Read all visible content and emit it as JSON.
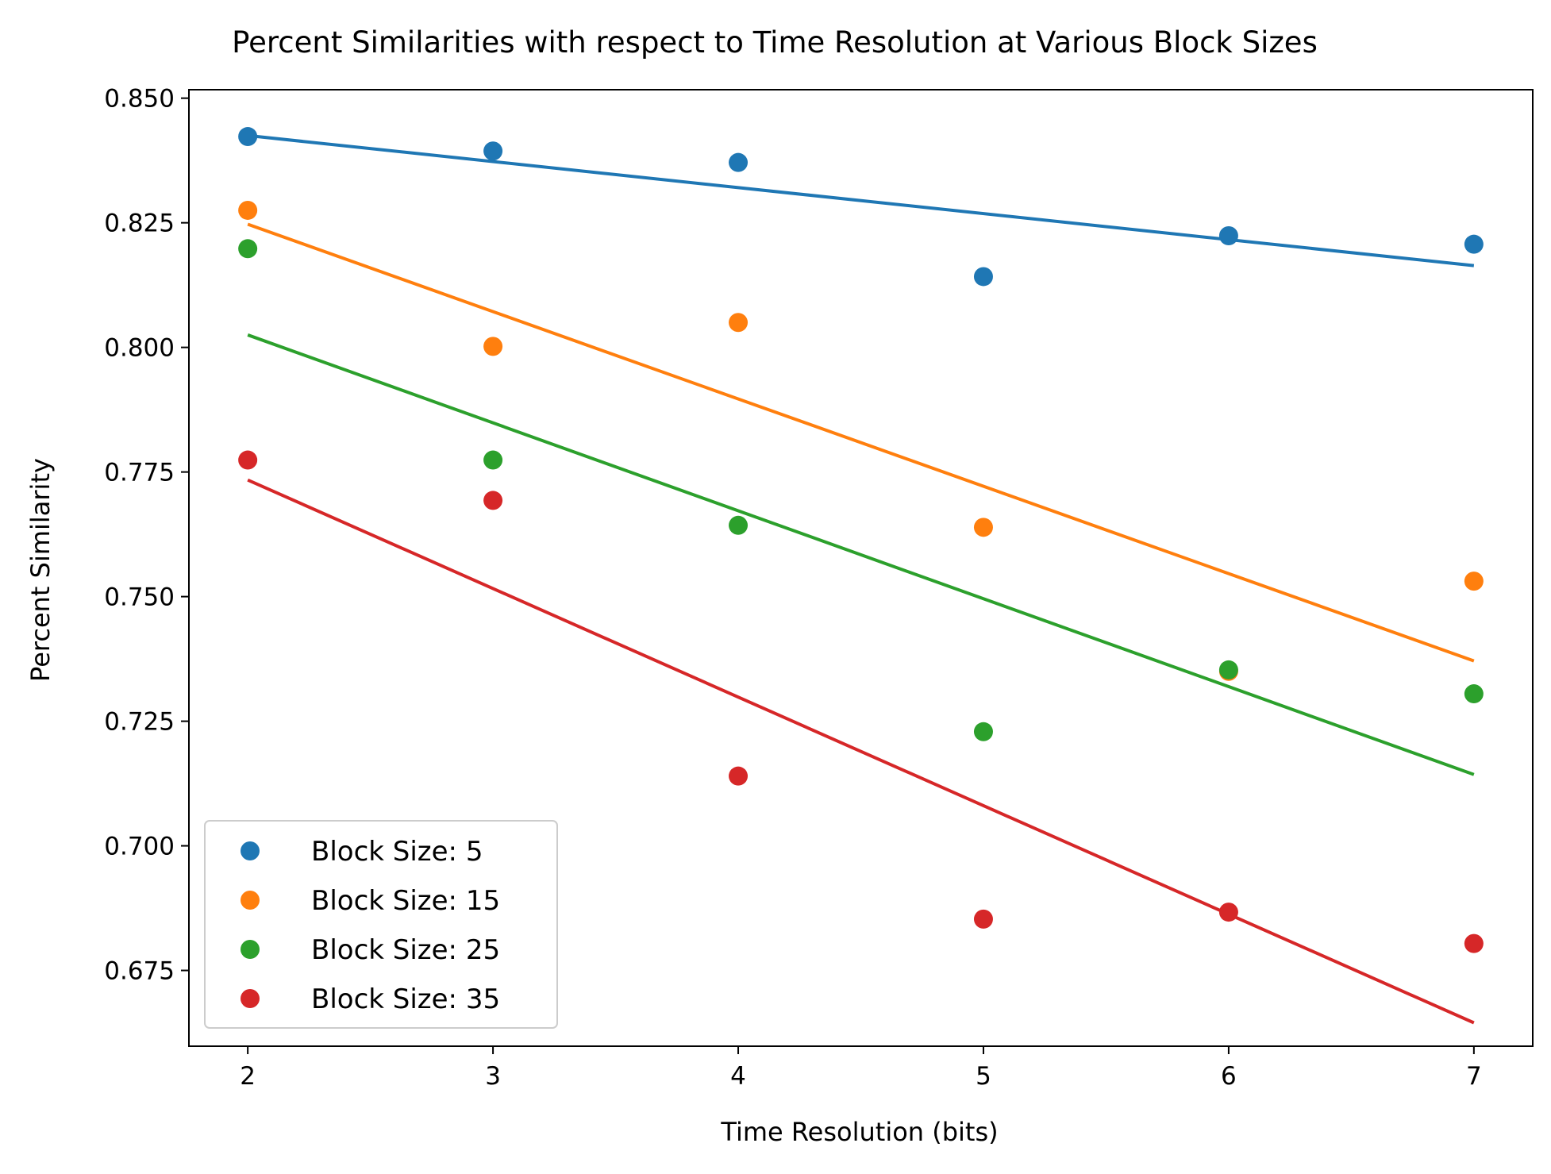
{
  "chart_data": {
    "type": "scatter",
    "title": "Percent Similarities with respect to Time Resolution at Various Block Sizes",
    "xlabel": "Time Resolution (bits)",
    "ylabel": "Percent Similarity",
    "xlim": [
      1.76,
      7.24
    ],
    "ylim": [
      0.6598,
      0.8517
    ],
    "x_ticks": [
      "2",
      "3",
      "4",
      "5",
      "6",
      "7"
    ],
    "y_ticks": [
      "0.675",
      "0.700",
      "0.725",
      "0.750",
      "0.775",
      "0.800",
      "0.825",
      "0.850"
    ],
    "grid": false,
    "legend_position": "lower-left",
    "x": [
      2,
      3,
      4,
      5,
      6,
      7
    ],
    "series": [
      {
        "name": "Block Size: 5",
        "color": "#1f77b4",
        "values": [
          0.8423,
          0.8394,
          0.8371,
          0.8142,
          0.8224,
          0.8207
        ],
        "trend": [
          0.8425,
          0.8164
        ]
      },
      {
        "name": "Block Size: 15",
        "color": "#ff7f0e",
        "values": [
          0.8275,
          0.8002,
          0.805,
          0.7639,
          0.735,
          0.7531
        ],
        "trend": [
          0.8247,
          0.7371
        ]
      },
      {
        "name": "Block Size: 25",
        "color": "#2ca02c",
        "values": [
          0.8198,
          0.7774,
          0.7643,
          0.7229,
          0.7353,
          0.7305
        ],
        "trend": [
          0.8025,
          0.7143
        ]
      },
      {
        "name": "Block Size: 35",
        "color": "#d62728",
        "values": [
          0.7774,
          0.7693,
          0.714,
          0.6853,
          0.6867,
          0.6804
        ],
        "trend": [
          0.7734,
          0.6645
        ]
      }
    ]
  }
}
